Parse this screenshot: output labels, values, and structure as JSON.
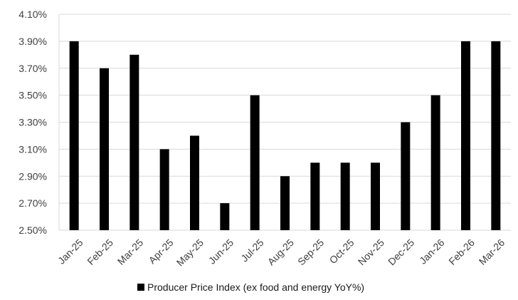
{
  "chart_data": {
    "type": "bar",
    "categories": [
      "Jan-25",
      "Feb-25",
      "Mar-25",
      "Apr-25",
      "May-25",
      "Jun-25",
      "Jul-25",
      "Aug-25",
      "Sep-25",
      "Oct-25",
      "Nov-25",
      "Dec-25",
      "Jan-26",
      "Feb-26",
      "Mar-26"
    ],
    "series": [
      {
        "name": "Producer Price Index (ex food and energy YoY%)",
        "values": [
          3.9,
          3.7,
          3.8,
          3.1,
          3.2,
          2.7,
          3.5,
          2.9,
          3.0,
          3.0,
          3.0,
          3.3,
          3.5,
          3.9,
          3.9
        ]
      }
    ],
    "ylim": [
      2.5,
      4.1
    ],
    "yticks": [
      "2.50%",
      "2.70%",
      "2.90%",
      "3.10%",
      "3.30%",
      "3.50%",
      "3.70%",
      "3.90%",
      "4.10%"
    ],
    "ytick_values": [
      2.5,
      2.7,
      2.9,
      3.1,
      3.3,
      3.5,
      3.7,
      3.9,
      4.1
    ],
    "grid": true,
    "legend_position": "bottom",
    "bar_color": "#000000",
    "grid_color": "#d9d9d9"
  }
}
